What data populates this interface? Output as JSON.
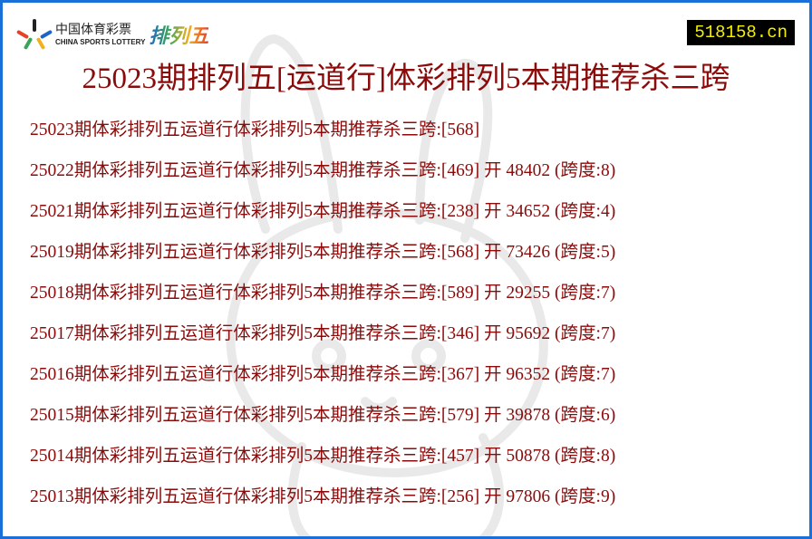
{
  "logo": {
    "cn": "中国体育彩票",
    "en": "CHINA SPORTS LOTTERY",
    "product": "排列五"
  },
  "site_badge": "518158.cn",
  "title": "25023期排列五[运道行]体彩排列5本期推荐杀三跨",
  "colors": {
    "border": "#1a6fd8",
    "text": "#8b0a0a",
    "badge_bg": "#000000",
    "badge_text": "#f4f000"
  },
  "rows": [
    {
      "text": "25023期体彩排列五运道行体彩排列5本期推荐杀三跨:[568]"
    },
    {
      "text": "25022期体彩排列五运道行体彩排列5本期推荐杀三跨:[469] 开 48402 (跨度:8)"
    },
    {
      "text": "25021期体彩排列五运道行体彩排列5本期推荐杀三跨:[238] 开 34652 (跨度:4)"
    },
    {
      "text": "25019期体彩排列五运道行体彩排列5本期推荐杀三跨:[568] 开 73426 (跨度:5)"
    },
    {
      "text": "25018期体彩排列五运道行体彩排列5本期推荐杀三跨:[589] 开 29255 (跨度:7)"
    },
    {
      "text": "25017期体彩排列五运道行体彩排列5本期推荐杀三跨:[346] 开 95692 (跨度:7)"
    },
    {
      "text": "25016期体彩排列五运道行体彩排列5本期推荐杀三跨:[367] 开 96352 (跨度:7)"
    },
    {
      "text": "25015期体彩排列五运道行体彩排列5本期推荐杀三跨:[579] 开 39878 (跨度:6)"
    },
    {
      "text": "25014期体彩排列五运道行体彩排列5本期推荐杀三跨:[457] 开 50878 (跨度:8)"
    },
    {
      "text": "25013期体彩排列五运道行体彩排列5本期推荐杀三跨:[256] 开 97806 (跨度:9)"
    }
  ]
}
